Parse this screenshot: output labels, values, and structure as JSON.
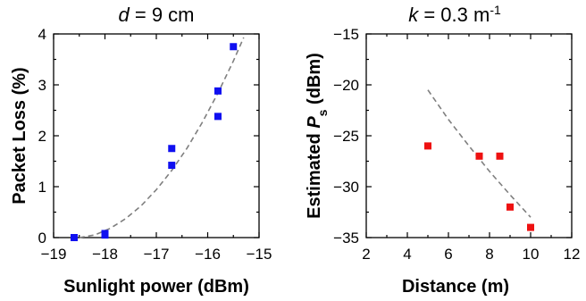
{
  "chart_data": [
    {
      "type": "scatter",
      "title": {
        "var": "d",
        "rest": " = 9 cm"
      },
      "xlabel": "Sunlight power (dBm)",
      "ylabel": "Packet Loss (%)",
      "xlim": [
        -19,
        -15
      ],
      "ylim": [
        0,
        4
      ],
      "xticks": [
        -19,
        -18,
        -17,
        -16,
        -15
      ],
      "yticks": [
        0,
        1,
        2,
        3,
        4
      ],
      "marker_color": "#1010f0",
      "fit_color": "#7f7f7f",
      "series": [
        {
          "x": [
            -18.6,
            -18.0,
            -18.0,
            -16.7,
            -16.7,
            -15.8,
            -15.8,
            -15.5
          ],
          "y": [
            0.0,
            0.05,
            0.08,
            1.42,
            1.75,
            2.38,
            2.88,
            3.75
          ]
        }
      ],
      "fit": {
        "x": [
          -18.5,
          -18.2,
          -17.9,
          -17.6,
          -17.3,
          -17.0,
          -16.7,
          -16.4,
          -16.1,
          -15.8,
          -15.5,
          -15.3
        ],
        "y": [
          0.0,
          0.05,
          0.18,
          0.37,
          0.62,
          0.94,
          1.32,
          1.76,
          2.27,
          2.84,
          3.47,
          3.93
        ]
      }
    },
    {
      "type": "scatter",
      "title": {
        "var": "k",
        "rest": " = 0.3 m",
        "sup": "-1"
      },
      "xlabel": "Distance (m)",
      "ylabel": {
        "prefix": "Estimated ",
        "var": "P",
        "sub": "s",
        "suffix": " (dBm)"
      },
      "xlim": [
        2,
        12
      ],
      "ylim": [
        -35,
        -15
      ],
      "xticks": [
        2,
        4,
        6,
        8,
        10,
        12
      ],
      "yticks": [
        -35,
        -30,
        -25,
        -20,
        -15
      ],
      "marker_color": "#ee1111",
      "fit_color": "#7f7f7f",
      "series": [
        {
          "x": [
            5.0,
            7.5,
            8.5,
            9.0,
            10.0
          ],
          "y": [
            -26.0,
            -27.0,
            -27.0,
            -32.0,
            -34.0
          ]
        }
      ],
      "fit": {
        "x": [
          5.0,
          6.0,
          7.0,
          8.0,
          9.0,
          10.0
        ],
        "y": [
          -20.5,
          -23.4,
          -26.0,
          -28.5,
          -30.8,
          -33.0
        ]
      }
    }
  ]
}
